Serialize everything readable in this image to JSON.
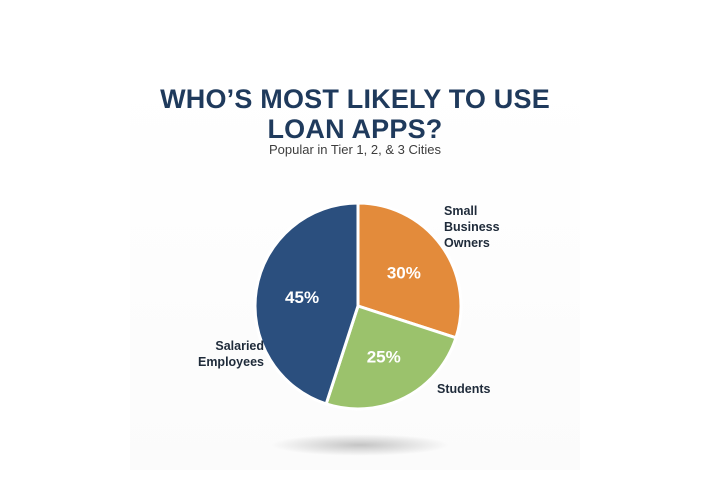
{
  "title_lines": [
    "WHO’S MOST LIKELY TO USE",
    "LOAN APPS?"
  ],
  "subtitle": "Popular in Tier 1, 2, & 3 Cities",
  "chart_data": {
    "type": "pie",
    "title": "WHO’S MOST LIKELY TO USE LOAN APPS?",
    "subtitle": "Popular in Tier 1, 2, & 3 Cities",
    "slices": [
      {
        "label": "Small Business Owners",
        "label_lines": [
          "Small",
          "Business",
          "Owners"
        ],
        "value": 30,
        "value_label": "30%",
        "color": "#e38b3b"
      },
      {
        "label": "Students",
        "label_lines": [
          "Students"
        ],
        "value": 25,
        "value_label": "25%",
        "color": "#9bc26c"
      },
      {
        "label": "Salaried Employees",
        "label_lines": [
          "Salaried",
          "Employees"
        ],
        "value": 45,
        "value_label": "45%",
        "color": "#2b4f7e"
      }
    ]
  }
}
